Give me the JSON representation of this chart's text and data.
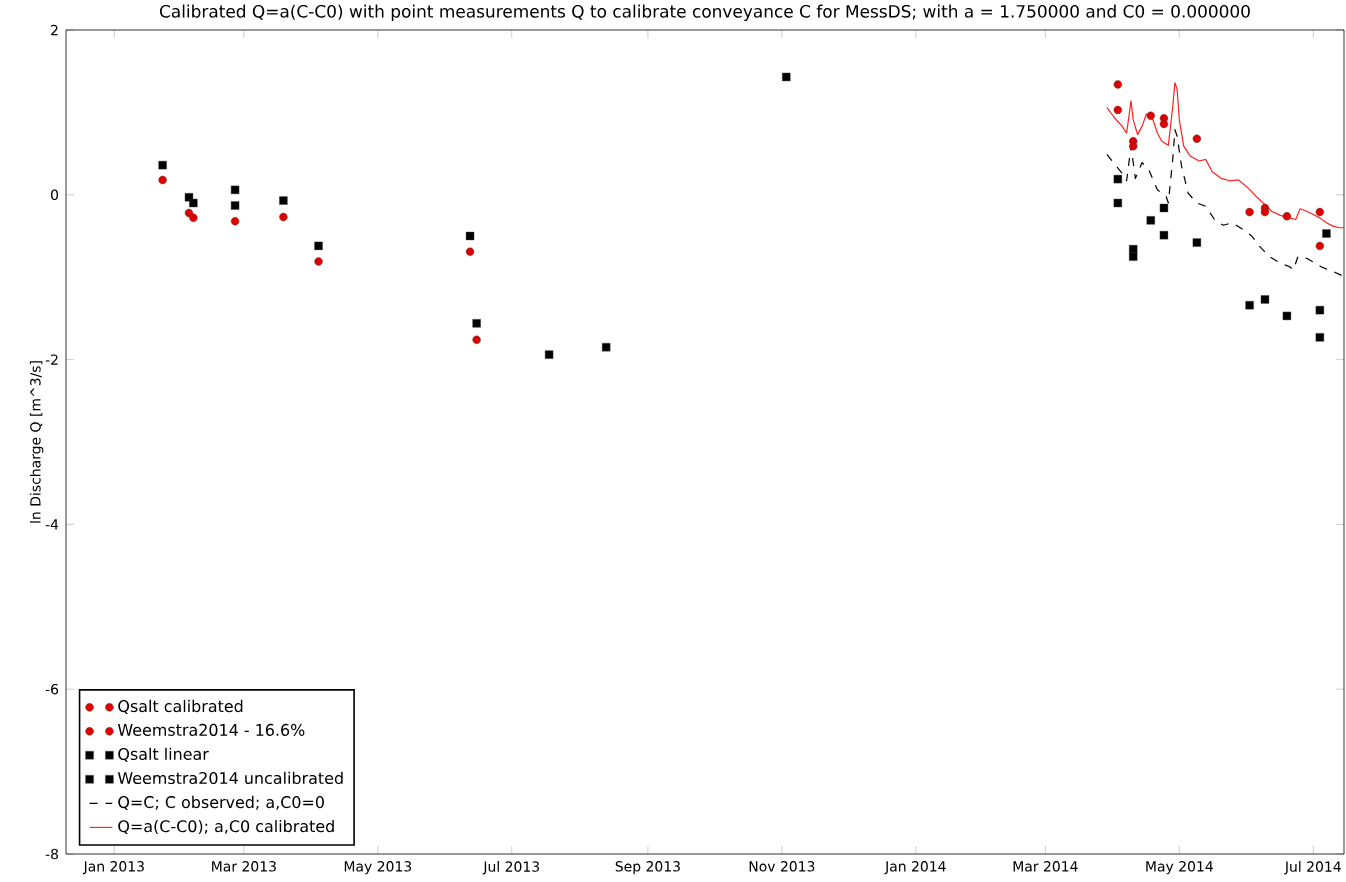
{
  "chart_data": {
    "type": "scatter",
    "title": "Calibrated Q=a(C-C0) with point measurements Q to calibrate conveyance C for MessDS; with a = 1.750000 and C0 = 0.000000",
    "ylabel": "ln Discharge Q [m^3/s]",
    "xlim": [
      "2012-12-10",
      "2014-07-15"
    ],
    "ylim": [
      -8,
      2
    ],
    "xticks": [
      {
        "value": "2013-01-01",
        "label": "Jan 2013"
      },
      {
        "value": "2013-03-01",
        "label": "Mar 2013"
      },
      {
        "value": "2013-05-01",
        "label": "May 2013"
      },
      {
        "value": "2013-07-01",
        "label": "Jul 2013"
      },
      {
        "value": "2013-09-01",
        "label": "Sep 2013"
      },
      {
        "value": "2013-11-01",
        "label": "Nov 2013"
      },
      {
        "value": "2014-01-01",
        "label": "Jan 2014"
      },
      {
        "value": "2014-03-01",
        "label": "Mar 2014"
      },
      {
        "value": "2014-05-01",
        "label": "May 2014"
      },
      {
        "value": "2014-07-01",
        "label": "Jul 2014"
      }
    ],
    "yticks": [
      -8,
      -6,
      -4,
      -2,
      0,
      2
    ],
    "legend": "bottom left",
    "series": [
      {
        "name": "Qsalt calibrated",
        "marker": "circle",
        "color": "#dd0000",
        "x": [
          "2013-01-23",
          "2013-02-04",
          "2013-02-06",
          "2013-02-25",
          "2013-03-19",
          "2013-04-04",
          "2013-06-12",
          "2013-06-15"
        ],
        "values": [
          0.18,
          -0.22,
          -0.28,
          -0.32,
          -0.27,
          -0.81,
          -0.69,
          -1.76
        ]
      },
      {
        "name": "Weemstra2014 - 16.6%",
        "marker": "circle",
        "color": "#dd0000",
        "x": [
          "2014-04-03",
          "2014-04-03",
          "2014-04-10",
          "2014-04-10",
          "2014-04-18",
          "2014-04-24",
          "2014-04-24",
          "2014-05-09",
          "2014-06-02",
          "2014-06-09",
          "2014-06-09",
          "2014-06-19",
          "2014-07-04",
          "2014-07-04"
        ],
        "values": [
          1.34,
          1.03,
          0.65,
          0.59,
          0.96,
          0.93,
          0.86,
          0.68,
          -0.21,
          -0.16,
          -0.21,
          -0.26,
          -0.21,
          -0.62
        ]
      },
      {
        "name": "Qsalt linear",
        "marker": "square",
        "color": "#000000",
        "x": [
          "2013-01-23",
          "2013-02-04",
          "2013-02-06",
          "2013-02-25",
          "2013-02-25",
          "2013-03-19",
          "2013-04-04",
          "2013-06-12",
          "2013-06-15",
          "2013-07-18",
          "2013-08-13",
          "2013-11-03"
        ],
        "values": [
          0.36,
          -0.03,
          -0.1,
          0.06,
          -0.13,
          -0.07,
          -0.62,
          -0.5,
          -1.56,
          -1.94,
          -1.85,
          1.43
        ]
      },
      {
        "name": "Weemstra2014 uncalibrated",
        "marker": "square",
        "color": "#000000",
        "x": [
          "2014-04-03",
          "2014-04-03",
          "2014-04-10",
          "2014-04-10",
          "2014-04-18",
          "2014-04-24",
          "2014-04-24",
          "2014-05-09",
          "2014-06-02",
          "2014-06-09",
          "2014-06-19",
          "2014-07-04",
          "2014-07-04",
          "2014-07-07"
        ],
        "values": [
          0.19,
          -0.1,
          -0.66,
          -0.75,
          -0.31,
          -0.16,
          -0.49,
          -0.58,
          -1.34,
          -1.27,
          -1.47,
          -1.4,
          -1.73,
          -0.47
        ]
      },
      {
        "name": "Q=C; C observed; a,C0=0",
        "type": "line",
        "marker": "none",
        "line_style": "dashed",
        "color": "#000000",
        "x": [
          "2014-03-29",
          "2014-04-01",
          "2014-04-05",
          "2014-04-07",
          "2014-04-09",
          "2014-04-11",
          "2014-04-14",
          "2014-04-17",
          "2014-04-21",
          "2014-04-25",
          "2014-04-26",
          "2014-04-28",
          "2014-04-29",
          "2014-04-30",
          "2014-05-02",
          "2014-05-05",
          "2014-05-09",
          "2014-05-13",
          "2014-05-17",
          "2014-05-21",
          "2014-05-25",
          "2014-05-30",
          "2014-06-03",
          "2014-06-06",
          "2014-06-11",
          "2014-06-16",
          "2014-06-20",
          "2014-06-22",
          "2014-06-24",
          "2014-06-28",
          "2014-07-02",
          "2014-07-05",
          "2014-07-10",
          "2014-07-14"
        ],
        "values": [
          0.49,
          0.39,
          0.26,
          0.17,
          0.59,
          0.2,
          0.39,
          0.31,
          0.06,
          -0.02,
          -0.1,
          0.43,
          0.79,
          0.71,
          0.35,
          0.02,
          -0.1,
          -0.14,
          -0.3,
          -0.37,
          -0.34,
          -0.42,
          -0.5,
          -0.61,
          -0.75,
          -0.83,
          -0.87,
          -0.91,
          -0.75,
          -0.77,
          -0.83,
          -0.88,
          -0.93,
          -0.98
        ]
      },
      {
        "name": "Q=a(C-C0); a,C0 calibrated",
        "type": "line",
        "marker": "none",
        "line_style": "solid",
        "color": "#ff2020",
        "x": [
          "2014-03-29",
          "2014-04-01",
          "2014-04-05",
          "2014-04-07",
          "2014-04-09",
          "2014-04-10",
          "2014-04-12",
          "2014-04-14",
          "2014-04-16",
          "2014-04-19",
          "2014-04-21",
          "2014-04-23",
          "2014-04-26",
          "2014-04-28",
          "2014-04-29",
          "2014-04-30",
          "2014-05-01",
          "2014-05-03",
          "2014-05-06",
          "2014-05-10",
          "2014-05-13",
          "2014-05-16",
          "2014-05-20",
          "2014-05-24",
          "2014-05-28",
          "2014-06-01",
          "2014-06-05",
          "2014-06-09",
          "2014-06-12",
          "2014-06-16",
          "2014-06-20",
          "2014-06-23",
          "2014-06-25",
          "2014-06-28",
          "2014-07-01",
          "2014-07-04",
          "2014-07-07",
          "2014-07-10",
          "2014-07-13",
          "2014-07-15"
        ],
        "values": [
          1.06,
          0.95,
          0.83,
          0.75,
          1.14,
          0.91,
          0.73,
          0.83,
          0.98,
          0.91,
          0.75,
          0.65,
          0.6,
          1.07,
          1.36,
          1.28,
          0.91,
          0.59,
          0.47,
          0.41,
          0.43,
          0.28,
          0.2,
          0.17,
          0.18,
          0.09,
          -0.02,
          -0.12,
          -0.2,
          -0.25,
          -0.28,
          -0.3,
          -0.17,
          -0.2,
          -0.24,
          -0.28,
          -0.34,
          -0.38,
          -0.4,
          -0.4
        ]
      }
    ]
  }
}
